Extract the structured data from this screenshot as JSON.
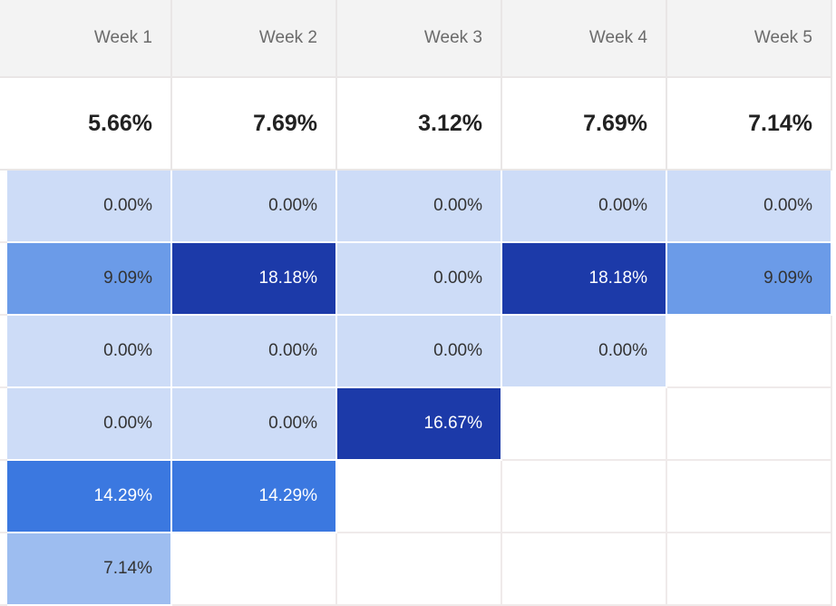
{
  "header": {
    "columns": [
      "Week 1",
      "Week 2",
      "Week 3",
      "Week 4",
      "Week 5"
    ]
  },
  "summary": {
    "cells": [
      "5.66%",
      "7.69%",
      "3.12%",
      "7.69%",
      "7.14%"
    ]
  },
  "table": {
    "rows": [
      [
        "0.00%",
        "0.00%",
        "0.00%",
        "0.00%",
        "0.00%"
      ],
      [
        "9.09%",
        "18.18%",
        "0.00%",
        "18.18%",
        "9.09%"
      ],
      [
        "0.00%",
        "0.00%",
        "0.00%",
        "0.00%"
      ],
      [
        "0.00%",
        "0.00%",
        "16.67%"
      ],
      [
        "14.29%",
        "14.29%"
      ],
      [
        "7.14%"
      ]
    ],
    "cell_colors": [
      [
        "#cddcf7",
        "#cddcf7",
        "#cddcf7",
        "#cddcf7",
        "#cddcf7"
      ],
      [
        "#6b9be8",
        "#1c3aa9",
        "#cddcf7",
        "#1c3aa9",
        "#6b9be8"
      ],
      [
        "#cddcf7",
        "#cddcf7",
        "#cddcf7",
        "#cddcf7"
      ],
      [
        "#cddcf7",
        "#cddcf7",
        "#1c3aa9"
      ],
      [
        "#3b78e0",
        "#3b78e0"
      ],
      [
        "#9dbdf0"
      ]
    ],
    "text_colors": [
      [
        "#333333",
        "#333333",
        "#333333",
        "#333333",
        "#333333"
      ],
      [
        "#333333",
        "#ffffff",
        "#333333",
        "#ffffff",
        "#333333"
      ],
      [
        "#333333",
        "#333333",
        "#333333",
        "#333333"
      ],
      [
        "#333333",
        "#333333",
        "#ffffff"
      ],
      [
        "#ffffff",
        "#ffffff"
      ],
      [
        "#333333"
      ]
    ]
  }
}
